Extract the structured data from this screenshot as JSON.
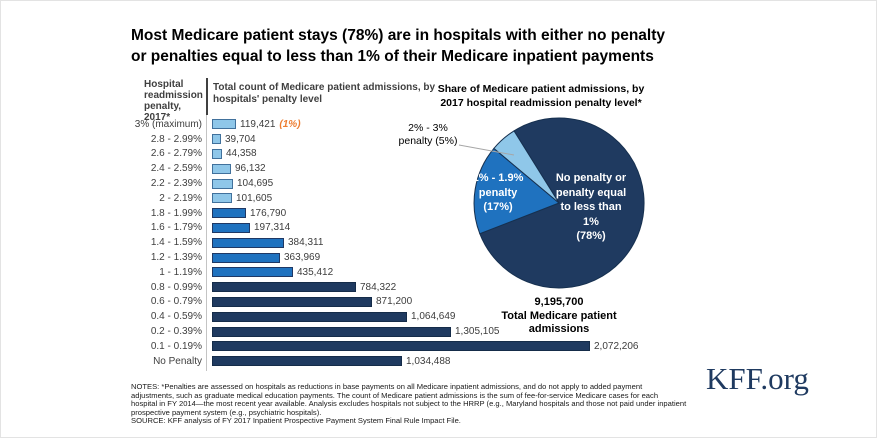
{
  "title": "Most Medicare patient stays (78%) are in hospitals with either no penalty\nor penalties equal to less than 1% of their Medicare inpatient payments",
  "bar_section": {
    "row_header": "Hospital\nreadmission\npenalty, 2017*",
    "value_header": "Total count of Medicare patient admissions, by\nhospitals' penalty level"
  },
  "pie_section": {
    "title": "Share of Medicare patient admissions, by\n2017 hospital readmission penalty level*",
    "total": "9,195,700\nTotal Medicare patient\nadmissions"
  },
  "notes": "NOTES: *Penalties are assessed on hospitals as reductions in base payments on all Medicare inpatient admissions, and do not apply to added payment\nadjustments, such as graduate medical education payments. The count of Medicare patient admissions is the sum of fee-for-service Medicare cases for each\nhospital in FY 2014—the most recent year available. Analysis excludes hospitals not subject to the HRRP (e.g., Maryland hospitals and those not paid under inpatient\nprospective payment system (e.g., psychiatric hospitals).\nSOURCE: KFF analysis of FY 2017 Inpatient Prospective Payment System Final Rule Impact File.",
  "branding": "KFF.org",
  "colors": {
    "light_fill": "#8fc7e9",
    "light_border": "#41719c",
    "medium_fill": "#1f72bf",
    "medium_border": "#1f3864",
    "dark_fill": "#1f3a60",
    "dark_border": "#152c49",
    "pie_stroke": "#16304f",
    "annotation_orange": "#ed7d31",
    "leader_gray": "#a6a6a6"
  },
  "chart_data": [
    {
      "type": "bar",
      "orientation": "horizontal",
      "title": "Total count of Medicare patient admissions, by hospitals' penalty level",
      "category_axis_label": "Hospital readmission penalty, 2017*",
      "categories": [
        "3% (maximum)",
        "2.8 - 2.99%",
        "2.6 - 2.79%",
        "2.4 - 2.59%",
        "2.2 - 2.39%",
        "2 - 2.19%",
        "1.8 - 1.99%",
        "1.6 - 1.79%",
        "1.4 - 1.59%",
        "1.2 - 1.39%",
        "1 - 1.19%",
        "0.8 - 0.99%",
        "0.6 - 0.79%",
        "0.4 - 0.59%",
        "0.2 - 0.39%",
        "0.1 - 0.19%",
        "No Penalty"
      ],
      "values": [
        119421,
        39704,
        44358,
        96132,
        104695,
        101605,
        176790,
        197314,
        384311,
        363969,
        435412,
        784322,
        871200,
        1064649,
        1305105,
        2072206,
        1034488
      ],
      "groups": [
        "light",
        "light",
        "light",
        "light",
        "light",
        "light",
        "medium",
        "medium",
        "medium",
        "medium",
        "medium",
        "dark",
        "dark",
        "dark",
        "dark",
        "dark",
        "dark"
      ],
      "annotations": {
        "3% (maximum)": "(1%)"
      },
      "xlim": [
        0,
        2200000
      ],
      "grid": false
    },
    {
      "type": "pie",
      "title": "Share of Medicare patient admissions, by 2017 hospital readmission penalty level*",
      "start_angle_deg": -32,
      "slices": [
        {
          "name": "No penalty or penalty equal to less than 1%",
          "pct": 78,
          "color_key": "dark",
          "label": "No penalty or\npenalty equal\nto less than\n1%\n(78%)",
          "label_placement": "inside"
        },
        {
          "name": "1% - 1.9% penalty",
          "pct": 17,
          "color_key": "medium",
          "label": "1% - 1.9%\npenalty\n(17%)",
          "label_placement": "inside"
        },
        {
          "name": "2% - 3% penalty",
          "pct": 5,
          "color_key": "light",
          "label": "2% - 3%\npenalty (5%)",
          "label_placement": "outside"
        }
      ],
      "total_label": "9,195,700 Total Medicare patient admissions"
    }
  ]
}
